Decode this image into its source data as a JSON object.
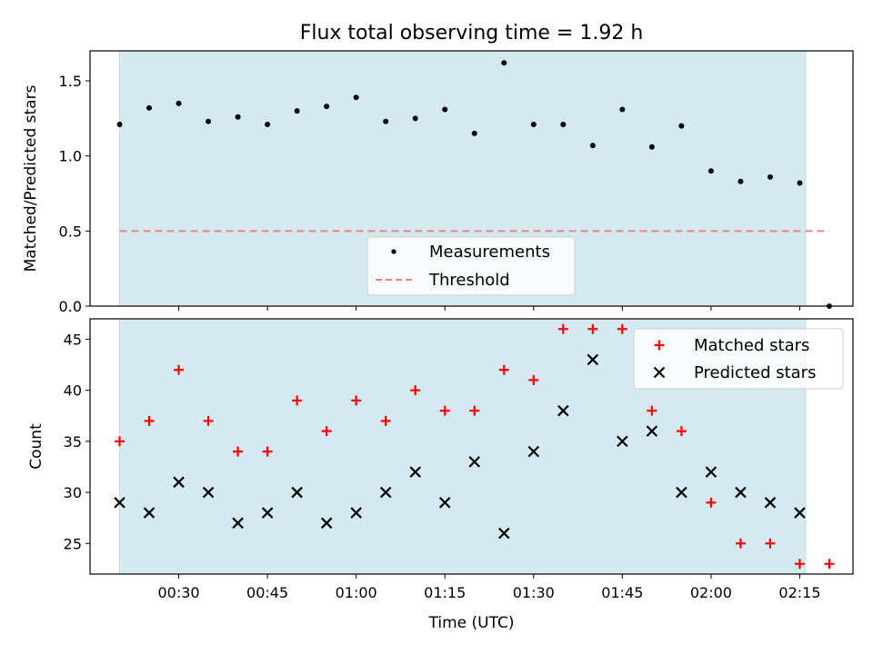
{
  "chart_data": [
    {
      "type": "scatter",
      "title": "Flux total observing time = 1.92 h",
      "xlabel": "",
      "ylabel": "Matched/Predicted stars",
      "ylim": [
        0,
        1.7
      ],
      "yticks": [
        "0.0",
        "0.5",
        "1.0",
        "1.5"
      ],
      "ytick_values": [
        0,
        0.5,
        1.0,
        1.5
      ],
      "x_time_range": [
        "00:15",
        "02:24"
      ],
      "shaded_span": [
        "00:20",
        "02:16"
      ],
      "shade_color": "#d4eaf0",
      "legend_position": "lower center",
      "series": [
        {
          "name": "Measurements",
          "marker": "dot",
          "color": "#000000",
          "x": [
            "00:20",
            "00:25",
            "00:30",
            "00:35",
            "00:40",
            "00:45",
            "00:50",
            "00:55",
            "01:00",
            "01:05",
            "01:10",
            "01:15",
            "01:20",
            "01:25",
            "01:30",
            "01:35",
            "01:40",
            "01:45",
            "01:50",
            "01:55",
            "02:00",
            "02:05",
            "02:10",
            "02:15",
            "02:20"
          ],
          "y": [
            1.21,
            1.32,
            1.35,
            1.23,
            1.26,
            1.21,
            1.3,
            1.33,
            1.39,
            1.23,
            1.25,
            1.31,
            1.15,
            1.62,
            1.21,
            1.21,
            1.07,
            1.31,
            1.06,
            1.2,
            0.9,
            0.83,
            0.86,
            0.82,
            0.0
          ]
        },
        {
          "name": "Threshold",
          "marker": "dashed-line",
          "color": "#f08080",
          "x": [
            "00:20",
            "02:20"
          ],
          "y": [
            0.5,
            0.5
          ]
        }
      ]
    },
    {
      "type": "scatter",
      "xlabel": "Time (UTC)",
      "ylabel": "Count",
      "ylim": [
        22,
        47
      ],
      "yticks": [
        "25",
        "30",
        "35",
        "40",
        "45"
      ],
      "ytick_values": [
        25,
        30,
        35,
        40,
        45
      ],
      "xticks": [
        "00:30",
        "00:45",
        "01:00",
        "01:15",
        "01:30",
        "01:45",
        "02:00",
        "02:15"
      ],
      "x_time_range": [
        "00:15",
        "02:24"
      ],
      "shaded_span": [
        "00:20",
        "02:16"
      ],
      "shade_color": "#d4eaf0",
      "legend_position": "upper right",
      "series": [
        {
          "name": "Matched stars",
          "marker": "plus",
          "color": "#ff0000",
          "x": [
            "00:20",
            "00:25",
            "00:30",
            "00:35",
            "00:40",
            "00:45",
            "00:50",
            "00:55",
            "01:00",
            "01:05",
            "01:10",
            "01:15",
            "01:20",
            "01:25",
            "01:30",
            "01:35",
            "01:40",
            "01:45",
            "01:50",
            "01:55",
            "02:00",
            "02:05",
            "02:10",
            "02:15",
            "02:20"
          ],
          "y": [
            35,
            37,
            42,
            37,
            34,
            34,
            39,
            36,
            39,
            37,
            40,
            38,
            38,
            42,
            41,
            46,
            46,
            46,
            38,
            36,
            29,
            25,
            25,
            23,
            23
          ]
        },
        {
          "name": "Predicted stars",
          "marker": "x",
          "color": "#000000",
          "x": [
            "00:20",
            "00:25",
            "00:30",
            "00:35",
            "00:40",
            "00:45",
            "00:50",
            "00:55",
            "01:00",
            "01:05",
            "01:10",
            "01:15",
            "01:20",
            "01:25",
            "01:30",
            "01:35",
            "01:40",
            "01:45",
            "01:50",
            "01:55",
            "02:00",
            "02:05",
            "02:10",
            "02:15"
          ],
          "y": [
            29,
            28,
            31,
            30,
            27,
            28,
            30,
            27,
            28,
            30,
            32,
            29,
            33,
            26,
            34,
            38,
            43,
            35,
            36,
            30,
            32,
            30,
            29,
            28
          ]
        }
      ]
    }
  ]
}
